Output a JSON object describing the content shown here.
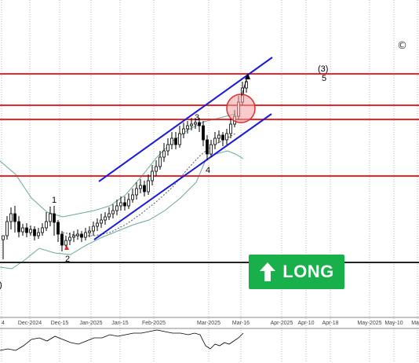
{
  "chart_data": {
    "type": "candlestick",
    "x_ticks": [
      "4",
      "Dec-2024",
      "Dec-15",
      "Jan-2025",
      "Jan-15",
      "Feb-2025",
      "Mar-2025",
      "Mar-16",
      "Apr-2025",
      "Apr-10",
      "Apr-18",
      "May-2025",
      "May-10",
      "May-"
    ],
    "wave_labels": {
      "w1": "1",
      "w2": "2",
      "w3": "3",
      "w4": "4",
      "w5_top": "(3)",
      "w5": "5",
      "left_edge": ")"
    },
    "copyright_symbol": "©",
    "signal": {
      "label": "LONG",
      "direction": "up",
      "color": "#18b04a"
    },
    "colors": {
      "resistance_lines": "#e8282a",
      "channel_lines": "#1a1ae0",
      "bollinger_bands": "#6aa79a",
      "moving_average": "#555555",
      "baseline": "#222222",
      "grid": "#b8b8b8",
      "candles": "#000000",
      "highlight_circle": "#f4a0a0"
    },
    "grid": true,
    "oscillator_panel": true
  }
}
